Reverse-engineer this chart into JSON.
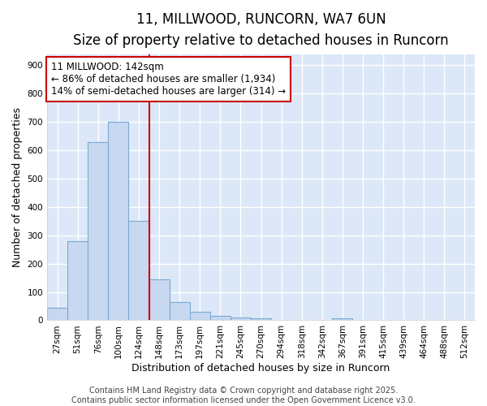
{
  "title": "11, MILLWOOD, RUNCORN, WA7 6UN",
  "subtitle": "Size of property relative to detached houses in Runcorn",
  "xlabel": "Distribution of detached houses by size in Runcorn",
  "ylabel": "Number of detached properties",
  "bar_labels": [
    "27sqm",
    "51sqm",
    "76sqm",
    "100sqm",
    "124sqm",
    "148sqm",
    "173sqm",
    "197sqm",
    "221sqm",
    "245sqm",
    "270sqm",
    "294sqm",
    "318sqm",
    "342sqm",
    "367sqm",
    "391sqm",
    "415sqm",
    "439sqm",
    "464sqm",
    "488sqm",
    "512sqm"
  ],
  "bar_values": [
    45,
    280,
    630,
    700,
    350,
    145,
    65,
    30,
    15,
    10,
    8,
    0,
    0,
    0,
    8,
    0,
    0,
    0,
    0,
    0,
    0
  ],
  "bar_color": "#c8d8f0",
  "bar_edge_color": "#7aaad0",
  "vline_color": "#cc0000",
  "annotation_title": "11 MILLWOOD: 142sqm",
  "annotation_line2": "← 86% of detached houses are smaller (1,934)",
  "annotation_line3": "14% of semi-detached houses are larger (314) →",
  "annotation_box_color": "#ffffff",
  "annotation_border_color": "#cc0000",
  "ylim": [
    0,
    940
  ],
  "yticks": [
    0,
    100,
    200,
    300,
    400,
    500,
    600,
    700,
    800,
    900
  ],
  "footer_text": "Contains HM Land Registry data © Crown copyright and database right 2025.\nContains public sector information licensed under the Open Government Licence v3.0.",
  "plot_bg_color": "#dce8f8",
  "fig_bg_color": "#ffffff",
  "grid_color": "#ffffff",
  "title_fontsize": 12,
  "subtitle_fontsize": 10,
  "axis_label_fontsize": 9,
  "tick_fontsize": 7.5,
  "annotation_fontsize": 8.5,
  "footer_fontsize": 7
}
